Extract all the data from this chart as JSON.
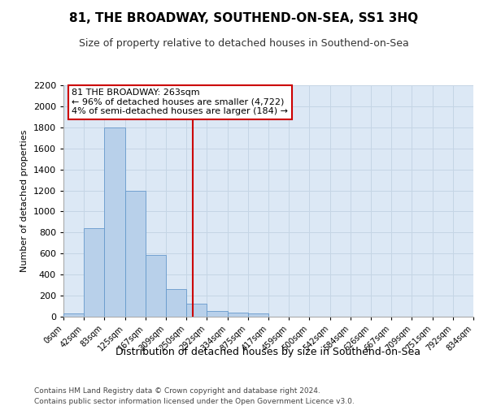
{
  "title": "81, THE BROADWAY, SOUTHEND-ON-SEA, SS1 3HQ",
  "subtitle": "Size of property relative to detached houses in Southend-on-Sea",
  "xlabel": "Distribution of detached houses by size in Southend-on-Sea",
  "ylabel": "Number of detached properties",
  "footer1": "Contains HM Land Registry data © Crown copyright and database right 2024.",
  "footer2": "Contains public sector information licensed under the Open Government Licence v3.0.",
  "annotation_line1": "81 THE BROADWAY: 263sqm",
  "annotation_line2": "← 96% of detached houses are smaller (4,722)",
  "annotation_line3": "4% of semi-detached houses are larger (184) →",
  "property_value": 263,
  "bin_edges": [
    0,
    42,
    83,
    125,
    167,
    209,
    250,
    292,
    334,
    375,
    417,
    459,
    500,
    542,
    584,
    626,
    667,
    709,
    751,
    792,
    834
  ],
  "bar_heights": [
    30,
    840,
    1800,
    1200,
    590,
    260,
    120,
    55,
    40,
    30,
    0,
    0,
    0,
    0,
    0,
    0,
    0,
    0,
    0,
    0
  ],
  "bar_color": "#b8d0ea",
  "bar_edge_color": "#6699cc",
  "property_line_color": "#cc0000",
  "annotation_box_color": "#cc0000",
  "grid_color": "#c5d5e5",
  "background_color": "#dce8f5",
  "ylim": [
    0,
    2200
  ],
  "yticks": [
    0,
    200,
    400,
    600,
    800,
    1000,
    1200,
    1400,
    1600,
    1800,
    2000,
    2200
  ]
}
